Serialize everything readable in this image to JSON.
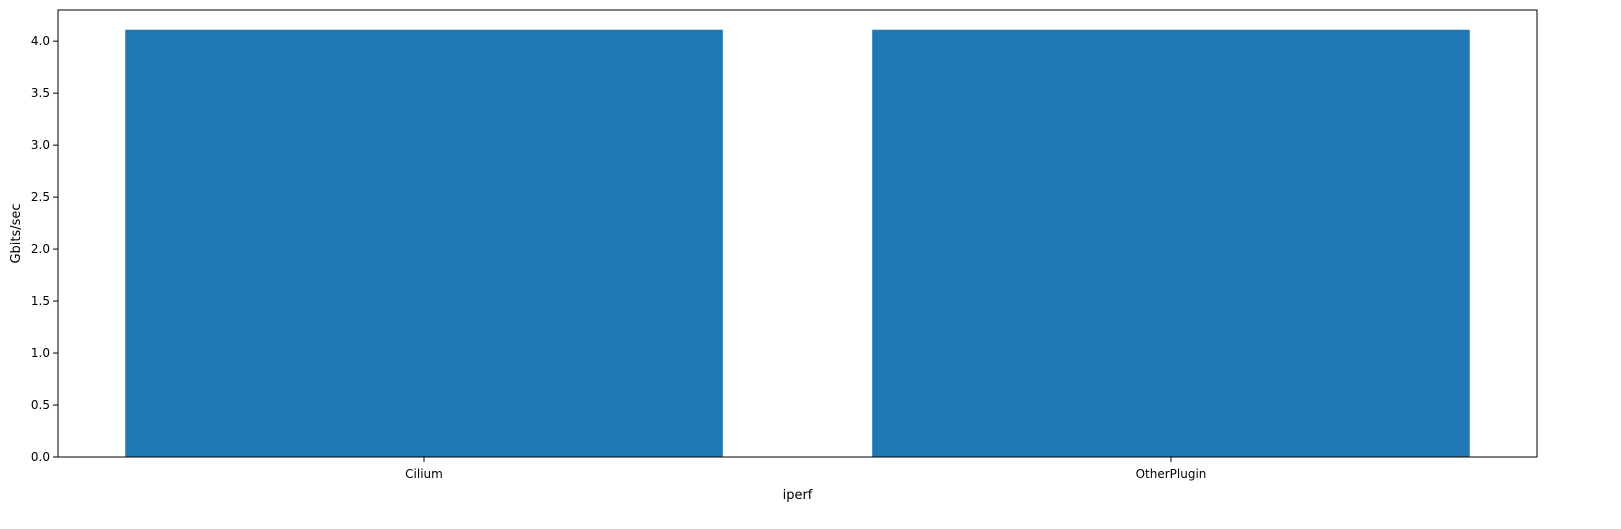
{
  "chart_data": {
    "type": "bar",
    "title": "",
    "xlabel": "iperf",
    "ylabel": "Gbits/sec",
    "categories": [
      "Cilium",
      "OtherPlugin"
    ],
    "values": [
      4.11,
      4.11
    ],
    "ylim": [
      0,
      4.3
    ],
    "yticks": [
      0.0,
      0.5,
      1.0,
      1.5,
      2.0,
      2.5,
      3.0,
      3.5,
      4.0
    ],
    "ytick_labels": [
      "0.0",
      "0.5",
      "1.0",
      "1.5",
      "2.0",
      "2.5",
      "3.0",
      "3.5",
      "4.0"
    ],
    "bar_color": "#1f77b4",
    "grid": false,
    "legend": "none"
  }
}
